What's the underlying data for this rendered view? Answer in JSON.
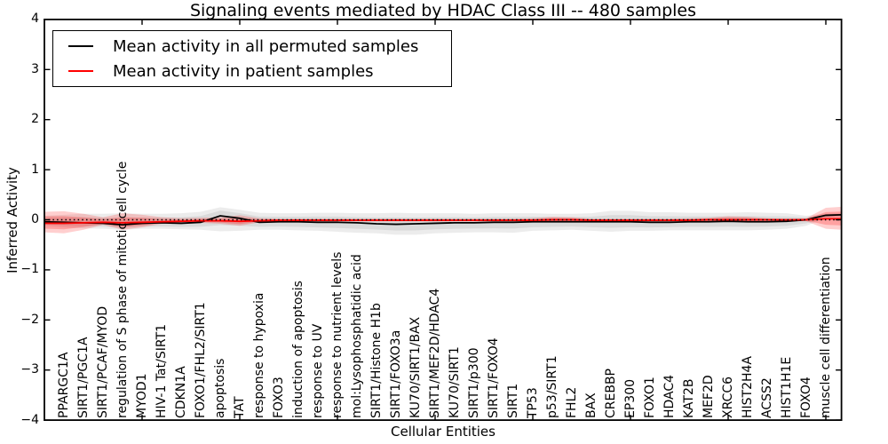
{
  "figure": {
    "title": "Signaling events mediated by HDAC Class III -- 480 samples",
    "xlabel": "Cellular Entities",
    "ylabel": "Inferred Activity"
  },
  "legend": {
    "entries": [
      {
        "label": "Mean activity in all permuted samples",
        "color": "#000000"
      },
      {
        "label": "Mean activity in patient samples",
        "color": "#ff0000"
      }
    ]
  },
  "chart_data": {
    "type": "line",
    "title": "Signaling events mediated by HDAC Class III -- 480 samples",
    "xlabel": "Cellular Entities",
    "ylabel": "Inferred Activity",
    "ylim": [
      -4,
      4
    ],
    "yticks": [
      4,
      3,
      2,
      1,
      0,
      -1,
      -2,
      -3,
      -4
    ],
    "ytick_labels": [
      "4",
      "3",
      "2",
      "1",
      "0",
      "−1",
      "−2",
      "−3",
      "−4"
    ],
    "x_axis_range": [
      0,
      40.8
    ],
    "top_tick_positions": [
      5,
      10,
      15,
      20,
      25,
      30,
      35,
      40
    ],
    "grid": false,
    "legend_position": "upper left",
    "zero_line": {
      "style": "dotted",
      "color": "#000000",
      "y": 0
    },
    "categories": [
      "PPARGC1A",
      "SIRT1/PGC1A",
      "SIRT1/PCAF/MYOD",
      "regulation of S phase of mitotic cell cycle",
      "MYOD1",
      "HIV-1 Tat/SIRT1",
      "CDKN1A",
      "FOXO1/FHL2/SIRT1",
      "apoptosis",
      "TAT",
      "response to hypoxia",
      "FOXO3",
      "induction of apoptosis",
      "response to UV",
      "response to nutrient levels",
      "mol:Lysophosphatidic acid",
      "SIRT1/Histone H1b",
      "SIRT1/FOXO3a",
      "KU70/SIRT1/BAX",
      "SIRT1/MEF2D/HDAC4",
      "KU70/SIRT1",
      "SIRT1/p300",
      "SIRT1/FOXO4",
      "SIRT1",
      "TP53",
      "p53/SIRT1",
      "FHL2",
      "BAX",
      "CREBBP",
      "EP300",
      "FOXO1",
      "HDAC4",
      "KAT2B",
      "MEF2D",
      "XRCC6",
      "HIST2H4A",
      "ACSS2",
      "HIST1H1E",
      "FOXO4",
      "muscle cell differentiation"
    ],
    "x_values": [
      0,
      1,
      2,
      3,
      4,
      5,
      6,
      7,
      8,
      9,
      10,
      11,
      12,
      13,
      14,
      15,
      16,
      17,
      18,
      19,
      20,
      21,
      22,
      23,
      24,
      25,
      26,
      27,
      28,
      29,
      30,
      31,
      32,
      33,
      34,
      35,
      36,
      37,
      38,
      39,
      40,
      40.8
    ],
    "series": [
      {
        "name": "Mean activity in all permuted samples",
        "color": "#000000",
        "values": [
          -0.04,
          -0.05,
          -0.06,
          -0.07,
          -0.1,
          -0.07,
          -0.06,
          -0.07,
          -0.05,
          0.08,
          0.03,
          -0.05,
          -0.04,
          -0.04,
          -0.05,
          -0.05,
          -0.06,
          -0.08,
          -0.09,
          -0.08,
          -0.07,
          -0.06,
          -0.06,
          -0.05,
          -0.05,
          -0.04,
          -0.04,
          -0.04,
          -0.04,
          -0.04,
          -0.04,
          -0.05,
          -0.05,
          -0.04,
          -0.04,
          -0.03,
          -0.04,
          -0.04,
          -0.03,
          0.0,
          0.09,
          0.1
        ]
      },
      {
        "name": "Mean activity in patient samples",
        "color": "#ff0000",
        "values": [
          -0.07,
          -0.07,
          -0.06,
          -0.05,
          -0.06,
          -0.05,
          -0.04,
          -0.03,
          -0.02,
          -0.02,
          -0.03,
          -0.02,
          -0.01,
          -0.01,
          -0.01,
          -0.01,
          -0.01,
          -0.01,
          -0.01,
          -0.01,
          -0.01,
          -0.01,
          -0.01,
          -0.01,
          -0.01,
          -0.01,
          0.0,
          0.0,
          -0.01,
          -0.01,
          -0.01,
          -0.01,
          -0.01,
          -0.01,
          0.0,
          0.0,
          0.0,
          0.0,
          0.0,
          0.0,
          0.02,
          0.02
        ]
      }
    ],
    "bands": [
      {
        "series": "Mean activity in all permuted samples",
        "color": "#000000",
        "outer_opacity": 0.075,
        "inner_opacity": 0.075,
        "inner_fraction": 0.6,
        "upper": [
          0.08,
          0.1,
          0.12,
          0.12,
          0.13,
          0.12,
          0.12,
          0.13,
          0.16,
          0.25,
          0.2,
          0.14,
          0.13,
          0.13,
          0.14,
          0.14,
          0.13,
          0.13,
          0.14,
          0.13,
          0.13,
          0.13,
          0.12,
          0.13,
          0.13,
          0.13,
          0.12,
          0.12,
          0.13,
          0.18,
          0.18,
          0.15,
          0.15,
          0.14,
          0.14,
          0.14,
          0.15,
          0.14,
          0.13,
          0.08,
          0.12,
          0.13
        ],
        "lower": [
          -0.12,
          -0.15,
          -0.17,
          -0.18,
          -0.2,
          -0.18,
          -0.18,
          -0.19,
          -0.2,
          -0.23,
          -0.22,
          -0.2,
          -0.2,
          -0.21,
          -0.22,
          -0.24,
          -0.26,
          -0.27,
          -0.3,
          -0.3,
          -0.27,
          -0.26,
          -0.25,
          -0.25,
          -0.26,
          -0.22,
          -0.21,
          -0.2,
          -0.22,
          -0.24,
          -0.22,
          -0.22,
          -0.21,
          -0.21,
          -0.21,
          -0.21,
          -0.21,
          -0.2,
          -0.18,
          -0.12,
          0.04,
          0.06
        ]
      },
      {
        "series": "Mean activity in patient samples",
        "color": "#ff0000",
        "outer_opacity": 0.19,
        "inner_opacity": 0.22,
        "inner_fraction": 0.6,
        "upper": [
          0.16,
          0.17,
          0.12,
          0.05,
          0.13,
          0.1,
          0.05,
          0.03,
          0.04,
          0.05,
          0.09,
          0.03,
          0.02,
          0.02,
          0.02,
          0.02,
          0.02,
          0.02,
          0.02,
          0.02,
          0.02,
          0.02,
          0.02,
          0.02,
          0.02,
          0.03,
          0.06,
          0.05,
          0.02,
          0.02,
          0.02,
          0.02,
          0.02,
          0.03,
          0.04,
          0.07,
          0.06,
          0.03,
          0.02,
          0.03,
          0.24,
          0.26
        ],
        "lower": [
          -0.25,
          -0.27,
          -0.2,
          -0.1,
          -0.2,
          -0.15,
          -0.08,
          -0.05,
          -0.06,
          -0.08,
          -0.12,
          -0.05,
          -0.03,
          -0.03,
          -0.03,
          -0.03,
          -0.03,
          -0.03,
          -0.03,
          -0.03,
          -0.03,
          -0.03,
          -0.03,
          -0.03,
          -0.03,
          -0.03,
          -0.05,
          -0.04,
          -0.03,
          -0.03,
          -0.03,
          -0.03,
          -0.03,
          -0.03,
          -0.03,
          -0.04,
          -0.04,
          -0.03,
          -0.02,
          -0.03,
          -0.18,
          -0.2
        ]
      }
    ]
  }
}
